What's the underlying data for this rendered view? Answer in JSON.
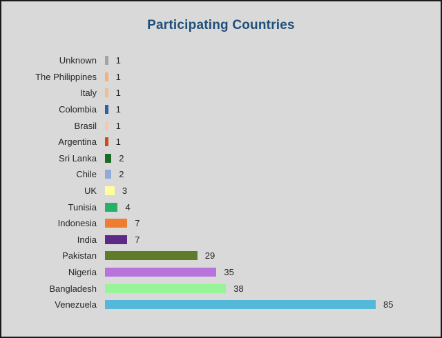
{
  "chart_data": {
    "type": "bar",
    "orientation": "horizontal",
    "title": "Participating Countries",
    "title_color": "#1F4E79",
    "categories": [
      "Unknown",
      "The Philippines",
      "Italy",
      "Colombia",
      "Brasil",
      "Argentina",
      "Sri Lanka",
      "Chile",
      "UK",
      "Tunisia",
      "Indonesia",
      "India",
      "Pakistan",
      "Nigeria",
      "Bangladesh",
      "Venezuela"
    ],
    "values": [
      1,
      1,
      1,
      1,
      1,
      1,
      2,
      2,
      3,
      4,
      7,
      7,
      29,
      35,
      38,
      85
    ],
    "colors": [
      "#a3a3a3",
      "#f8b07a",
      "#f2bd8c",
      "#2e5fa3",
      "#f9c5ab",
      "#d2491b",
      "#1d6b24",
      "#93a9dc",
      "#ffff9e",
      "#27b06a",
      "#ed7d31",
      "#5e2a8a",
      "#5e7c2a",
      "#b873dc",
      "#97f497",
      "#54b8d8"
    ],
    "xlabel": "",
    "ylabel": "",
    "xlim": [
      0,
      85
    ],
    "grid": false,
    "legend": "none",
    "value_labels_shown": true,
    "background": "#d9d9d9"
  }
}
